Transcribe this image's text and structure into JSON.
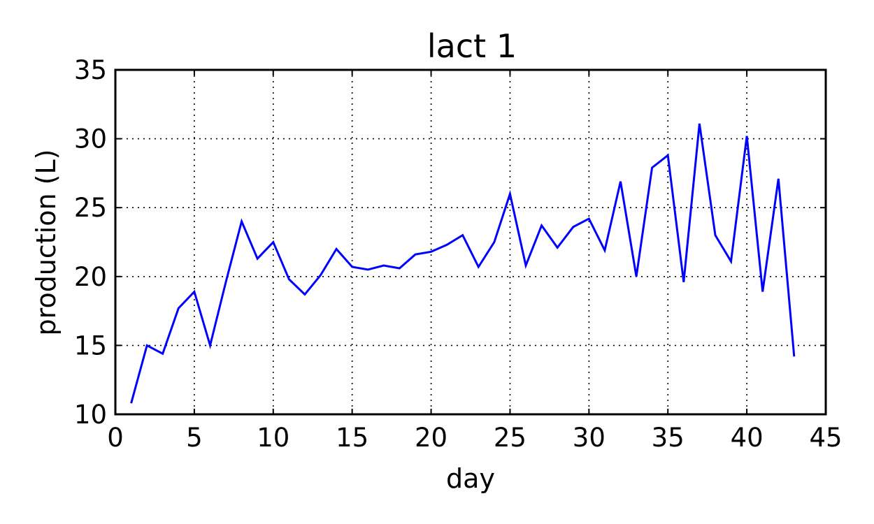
{
  "chart_data": {
    "type": "line",
    "title": "lact 1",
    "xlabel": "day",
    "ylabel": "production (L)",
    "xlim": [
      0,
      45
    ],
    "ylim": [
      10,
      35
    ],
    "xticks": [
      0,
      5,
      10,
      15,
      20,
      25,
      30,
      35,
      40,
      45
    ],
    "yticks": [
      10,
      15,
      20,
      25,
      30,
      35
    ],
    "xtick_labels": [
      "0",
      "5",
      "10",
      "15",
      "20",
      "25",
      "30",
      "35",
      "40",
      "45"
    ],
    "ytick_labels": [
      "10",
      "15",
      "20",
      "25",
      "30",
      "35"
    ],
    "grid": true,
    "series": [
      {
        "color": "#0000ff",
        "x": [
          1,
          2,
          3,
          4,
          5,
          6,
          7,
          8,
          9,
          10,
          11,
          12,
          13,
          14,
          15,
          16,
          17,
          18,
          19,
          20,
          21,
          22,
          23,
          24,
          25,
          26,
          27,
          28,
          29,
          30,
          31,
          32,
          33,
          34,
          35,
          36,
          37,
          38,
          39,
          40,
          41,
          42,
          43
        ],
        "y": [
          10.8,
          15.0,
          14.4,
          17.7,
          18.9,
          15.0,
          19.6,
          24.0,
          21.3,
          22.5,
          19.8,
          18.7,
          20.1,
          22.0,
          20.7,
          20.5,
          20.8,
          20.6,
          21.6,
          21.8,
          22.3,
          23.0,
          20.7,
          22.5,
          26.0,
          20.8,
          23.7,
          22.1,
          23.6,
          24.2,
          21.9,
          26.9,
          20.0,
          27.9,
          28.8,
          19.6,
          31.1,
          23.0,
          21.1,
          30.2,
          18.9,
          27.1,
          14.2
        ]
      }
    ]
  }
}
